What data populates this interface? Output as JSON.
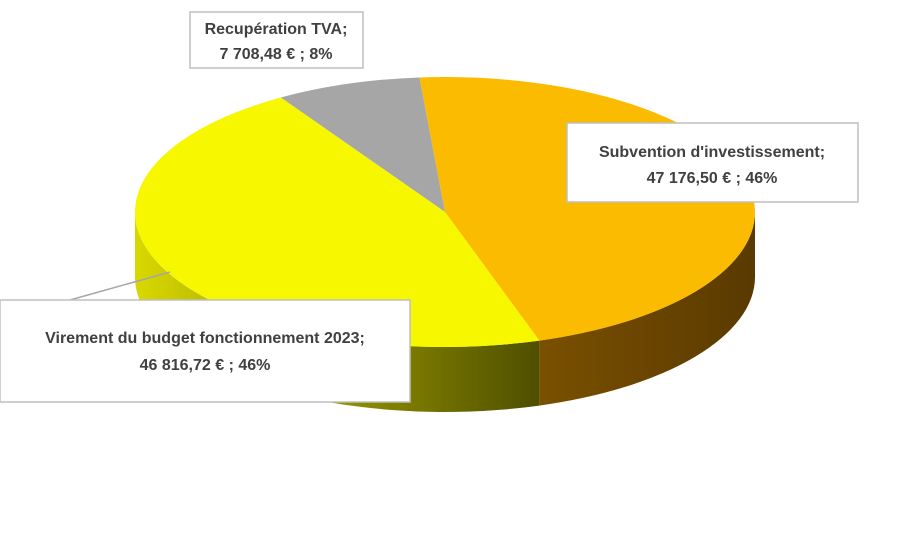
{
  "chart_data": {
    "type": "pie",
    "categories": [
      "Recupération TVA;",
      "Subvention d'investissement;",
      "Virement du budget fonctionnement 2023;"
    ],
    "values": [
      7708.48,
      47176.5,
      46816.72
    ],
    "value_labels": [
      "7 708,48 € ; 8%",
      "47 176,50 € ; 46%",
      "46 816,72 € ; 46%"
    ],
    "colors": [
      "#a6a6a6",
      "#fbbb00",
      "#f7f700"
    ]
  }
}
